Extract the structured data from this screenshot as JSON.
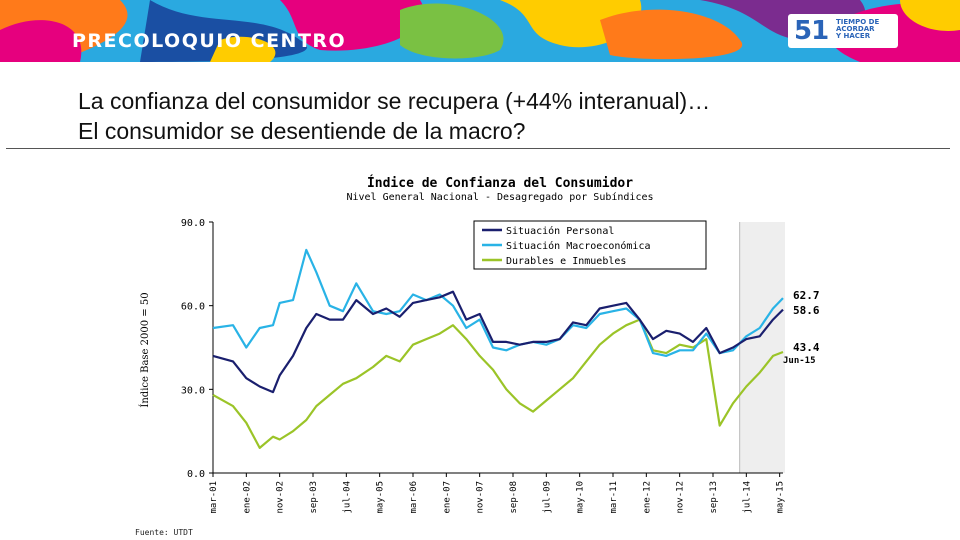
{
  "header": {
    "brand": "PRECOLOQUIO CENTRO",
    "logo_number": "51",
    "logo_text_lines": [
      "TIEMPO DE",
      "ACORDAR",
      "Y HACER"
    ]
  },
  "slide": {
    "title_line1": "La confianza del consumidor se recupera (+44% interanual)…",
    "title_line2": "El consumidor se desentiende de la macro?"
  },
  "source": "Fuente: UTDT",
  "colors": {
    "personal": "#1a1f6e",
    "macro": "#29b3e6",
    "durables": "#9bc428",
    "shade": "#eeeeee"
  },
  "chart_data": {
    "type": "line",
    "title": "Índice de Confianza del Consumidor",
    "subtitle": "Nivel General Nacional - Desagregado por Subíndices",
    "ylabel": "Índice Base 2000 = 50",
    "xlabel": "",
    "ylim": [
      0,
      90
    ],
    "yticks": [
      "0.0",
      "30.0",
      "60.0",
      "90.0"
    ],
    "x_start": "2001-03",
    "x_end": "2015-06",
    "xticks": [
      "mar-01",
      "ene-02",
      "nov-02",
      "sep-03",
      "jul-04",
      "may-05",
      "mar-06",
      "ene-07",
      "nov-07",
      "sep-08",
      "jul-09",
      "may-10",
      "mar-11",
      "ene-12",
      "nov-12",
      "sep-13",
      "jul-14",
      "may-15"
    ],
    "shaded_region": [
      "2014-05",
      "2015-06"
    ],
    "legend_position": "top-right",
    "end_labels": [
      {
        "series": "Situación Macroeconómica",
        "text": "62.7"
      },
      {
        "series": "Situación Personal",
        "text": "58.6"
      },
      {
        "series": "Durables e Inmuebles",
        "text": "43.4"
      },
      {
        "series": "Durables e Inmuebles",
        "text": "Jun-15"
      }
    ],
    "series": [
      {
        "name": "Situación Personal",
        "points": [
          [
            "2001-03",
            42
          ],
          [
            "2001-09",
            40
          ],
          [
            "2002-01",
            34
          ],
          [
            "2002-05",
            31
          ],
          [
            "2002-09",
            29
          ],
          [
            "2002-11",
            35
          ],
          [
            "2003-03",
            42
          ],
          [
            "2003-07",
            52
          ],
          [
            "2003-10",
            57
          ],
          [
            "2004-02",
            55
          ],
          [
            "2004-06",
            55
          ],
          [
            "2004-10",
            62
          ],
          [
            "2005-03",
            57
          ],
          [
            "2005-07",
            59
          ],
          [
            "2005-11",
            56
          ],
          [
            "2006-03",
            61
          ],
          [
            "2006-07",
            62
          ],
          [
            "2006-11",
            63
          ],
          [
            "2007-03",
            65
          ],
          [
            "2007-07",
            55
          ],
          [
            "2007-11",
            57
          ],
          [
            "2008-03",
            47
          ],
          [
            "2008-07",
            47
          ],
          [
            "2008-11",
            46
          ],
          [
            "2009-03",
            47
          ],
          [
            "2009-07",
            47
          ],
          [
            "2009-11",
            48
          ],
          [
            "2010-03",
            54
          ],
          [
            "2010-07",
            53
          ],
          [
            "2010-11",
            59
          ],
          [
            "2011-03",
            60
          ],
          [
            "2011-07",
            61
          ],
          [
            "2011-11",
            55
          ],
          [
            "2012-03",
            48
          ],
          [
            "2012-07",
            51
          ],
          [
            "2012-11",
            50
          ],
          [
            "2013-03",
            47
          ],
          [
            "2013-07",
            52
          ],
          [
            "2013-11",
            43
          ],
          [
            "2014-03",
            45
          ],
          [
            "2014-07",
            48
          ],
          [
            "2014-11",
            49
          ],
          [
            "2015-03",
            55
          ],
          [
            "2015-06",
            58.6
          ]
        ]
      },
      {
        "name": "Situación Macroeconómica",
        "points": [
          [
            "2001-03",
            52
          ],
          [
            "2001-09",
            53
          ],
          [
            "2002-01",
            45
          ],
          [
            "2002-05",
            52
          ],
          [
            "2002-09",
            53
          ],
          [
            "2002-11",
            61
          ],
          [
            "2003-03",
            62
          ],
          [
            "2003-07",
            80
          ],
          [
            "2003-10",
            72
          ],
          [
            "2004-02",
            60
          ],
          [
            "2004-06",
            58
          ],
          [
            "2004-10",
            68
          ],
          [
            "2005-03",
            58
          ],
          [
            "2005-07",
            57
          ],
          [
            "2005-11",
            58
          ],
          [
            "2006-03",
            64
          ],
          [
            "2006-07",
            62
          ],
          [
            "2006-11",
            64
          ],
          [
            "2007-03",
            60
          ],
          [
            "2007-07",
            52
          ],
          [
            "2007-11",
            55
          ],
          [
            "2008-03",
            45
          ],
          [
            "2008-07",
            44
          ],
          [
            "2008-11",
            46
          ],
          [
            "2009-03",
            47
          ],
          [
            "2009-07",
            46
          ],
          [
            "2009-11",
            48
          ],
          [
            "2010-03",
            53
          ],
          [
            "2010-07",
            52
          ],
          [
            "2010-11",
            57
          ],
          [
            "2011-03",
            58
          ],
          [
            "2011-07",
            59
          ],
          [
            "2011-11",
            55
          ],
          [
            "2012-03",
            43
          ],
          [
            "2012-07",
            42
          ],
          [
            "2012-11",
            44
          ],
          [
            "2013-03",
            44
          ],
          [
            "2013-07",
            50
          ],
          [
            "2013-11",
            43
          ],
          [
            "2014-03",
            44
          ],
          [
            "2014-07",
            49
          ],
          [
            "2014-11",
            52
          ],
          [
            "2015-03",
            59
          ],
          [
            "2015-06",
            62.7
          ]
        ]
      },
      {
        "name": "Durables e Inmuebles",
        "points": [
          [
            "2001-03",
            28
          ],
          [
            "2001-09",
            24
          ],
          [
            "2002-01",
            18
          ],
          [
            "2002-05",
            9
          ],
          [
            "2002-09",
            13
          ],
          [
            "2002-11",
            12
          ],
          [
            "2003-03",
            15
          ],
          [
            "2003-07",
            19
          ],
          [
            "2003-10",
            24
          ],
          [
            "2004-02",
            28
          ],
          [
            "2004-06",
            32
          ],
          [
            "2004-10",
            34
          ],
          [
            "2005-03",
            38
          ],
          [
            "2005-07",
            42
          ],
          [
            "2005-11",
            40
          ],
          [
            "2006-03",
            46
          ],
          [
            "2006-07",
            48
          ],
          [
            "2006-11",
            50
          ],
          [
            "2007-03",
            53
          ],
          [
            "2007-07",
            48
          ],
          [
            "2007-11",
            42
          ],
          [
            "2008-03",
            37
          ],
          [
            "2008-07",
            30
          ],
          [
            "2008-11",
            25
          ],
          [
            "2009-03",
            22
          ],
          [
            "2009-07",
            26
          ],
          [
            "2009-11",
            30
          ],
          [
            "2010-03",
            34
          ],
          [
            "2010-07",
            40
          ],
          [
            "2010-11",
            46
          ],
          [
            "2011-03",
            50
          ],
          [
            "2011-07",
            53
          ],
          [
            "2011-11",
            55
          ],
          [
            "2012-03",
            44
          ],
          [
            "2012-07",
            43
          ],
          [
            "2012-11",
            46
          ],
          [
            "2013-03",
            45
          ],
          [
            "2013-07",
            48
          ],
          [
            "2013-11",
            17
          ],
          [
            "2014-03",
            25
          ],
          [
            "2014-07",
            31
          ],
          [
            "2014-11",
            36
          ],
          [
            "2015-03",
            42
          ],
          [
            "2015-06",
            43.4
          ]
        ]
      }
    ]
  }
}
